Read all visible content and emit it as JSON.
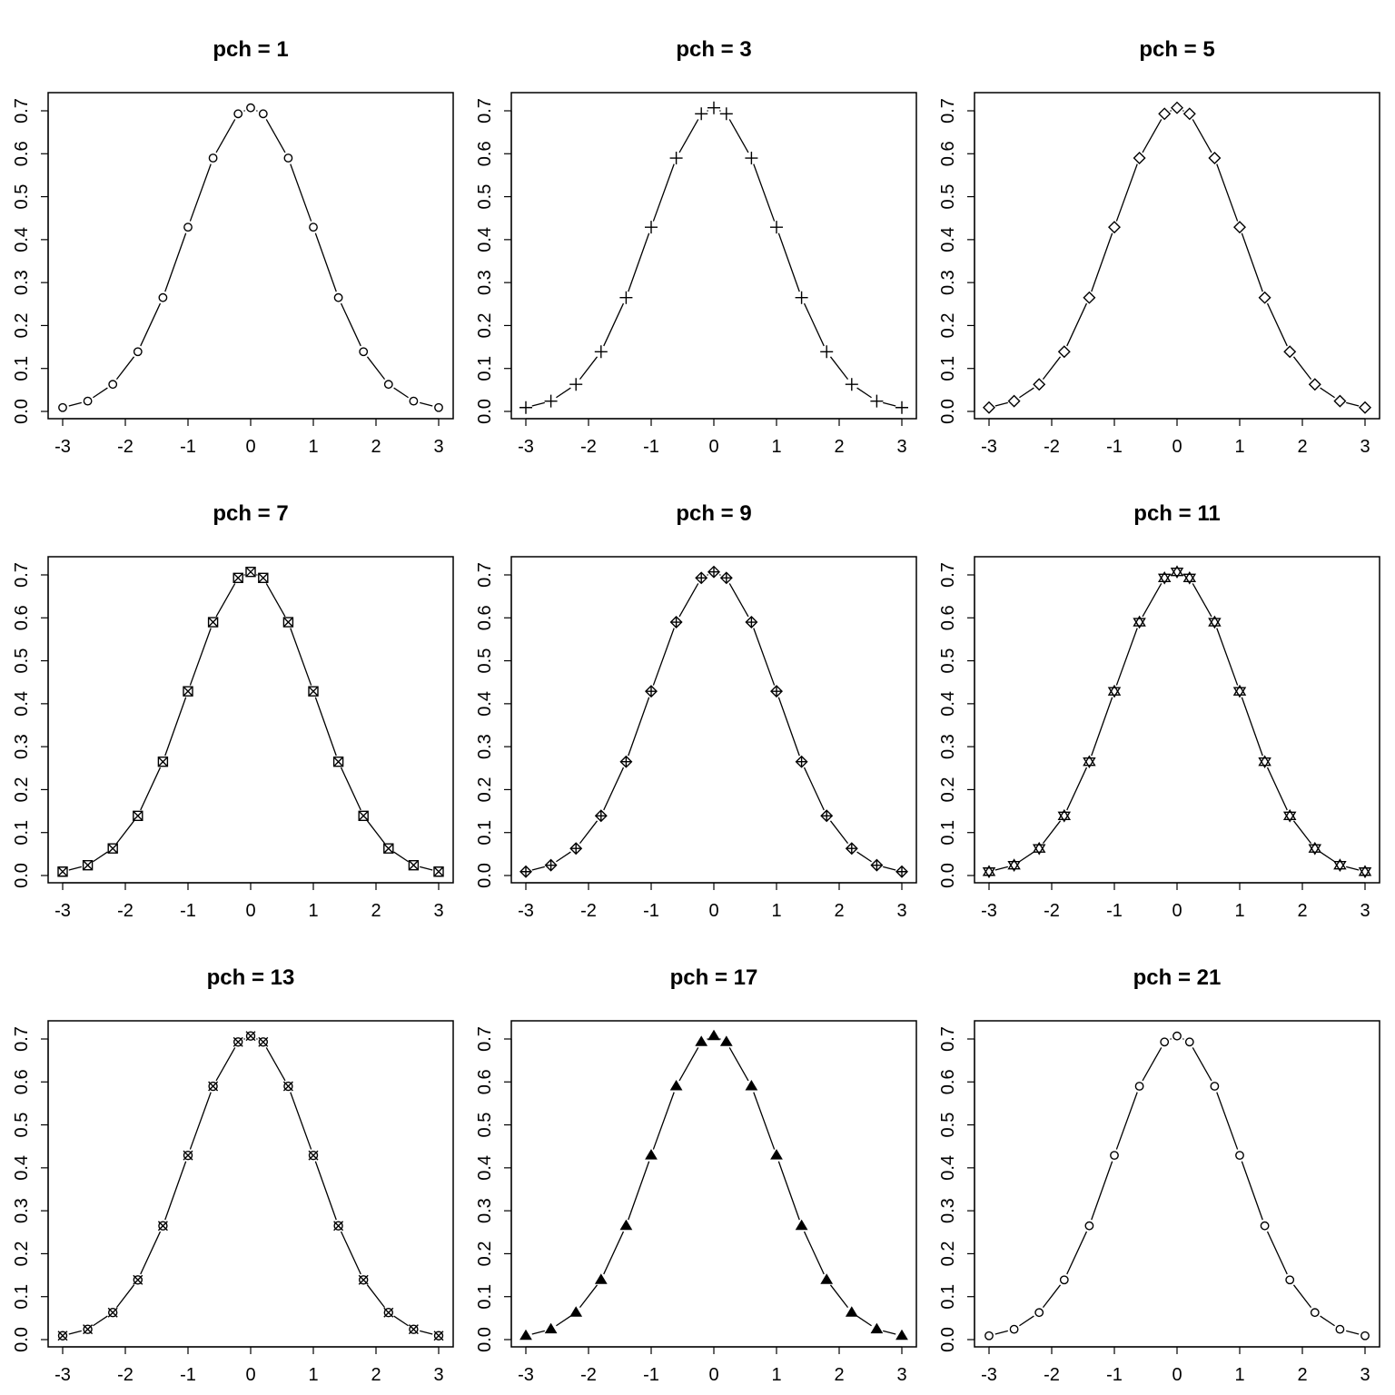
{
  "figure": {
    "background": "#ffffff",
    "foreground": "#000000"
  },
  "chart_data": [
    {
      "type": "line",
      "title": "pch = 1",
      "marker": "circle-open",
      "pch": 1,
      "x": [
        -3,
        -2.6,
        -2.2,
        -1.8,
        -1.4,
        -1,
        -0.6,
        -0.2,
        0,
        0.2,
        0.6,
        1,
        1.4,
        1.8,
        2.2,
        2.6,
        3
      ],
      "y": [
        0.009,
        0.024,
        0.063,
        0.139,
        0.265,
        0.429,
        0.59,
        0.693,
        0.707,
        0.693,
        0.59,
        0.429,
        0.265,
        0.139,
        0.063,
        0.024,
        0.009
      ],
      "xlim": [
        -3,
        3
      ],
      "ylim": [
        0,
        0.7
      ],
      "xticks": [
        "-3",
        "-2",
        "-1",
        "0",
        "1",
        "2",
        "3"
      ],
      "yticks": [
        "0.0",
        "0.1",
        "0.2",
        "0.3",
        "0.4",
        "0.5",
        "0.6",
        "0.7"
      ],
      "grid": false,
      "xlabel": "",
      "ylabel": ""
    },
    {
      "type": "line",
      "title": "pch = 3",
      "marker": "plus",
      "pch": 3,
      "x": [
        -3,
        -2.6,
        -2.2,
        -1.8,
        -1.4,
        -1,
        -0.6,
        -0.2,
        0,
        0.2,
        0.6,
        1,
        1.4,
        1.8,
        2.2,
        2.6,
        3
      ],
      "y": [
        0.009,
        0.024,
        0.063,
        0.139,
        0.265,
        0.429,
        0.59,
        0.693,
        0.707,
        0.693,
        0.59,
        0.429,
        0.265,
        0.139,
        0.063,
        0.024,
        0.009
      ],
      "xlim": [
        -3,
        3
      ],
      "ylim": [
        0,
        0.7
      ],
      "xticks": [
        "-3",
        "-2",
        "-1",
        "0",
        "1",
        "2",
        "3"
      ],
      "yticks": [
        "0.0",
        "0.1",
        "0.2",
        "0.3",
        "0.4",
        "0.5",
        "0.6",
        "0.7"
      ],
      "grid": false,
      "xlabel": "",
      "ylabel": ""
    },
    {
      "type": "line",
      "title": "pch = 5",
      "marker": "diamond-open",
      "pch": 5,
      "x": [
        -3,
        -2.6,
        -2.2,
        -1.8,
        -1.4,
        -1,
        -0.6,
        -0.2,
        0,
        0.2,
        0.6,
        1,
        1.4,
        1.8,
        2.2,
        2.6,
        3
      ],
      "y": [
        0.009,
        0.024,
        0.063,
        0.139,
        0.265,
        0.429,
        0.59,
        0.693,
        0.707,
        0.693,
        0.59,
        0.429,
        0.265,
        0.139,
        0.063,
        0.024,
        0.009
      ],
      "xlim": [
        -3,
        3
      ],
      "ylim": [
        0,
        0.7
      ],
      "xticks": [
        "-3",
        "-2",
        "-1",
        "0",
        "1",
        "2",
        "3"
      ],
      "yticks": [
        "0.0",
        "0.1",
        "0.2",
        "0.3",
        "0.4",
        "0.5",
        "0.6",
        "0.7"
      ],
      "grid": false,
      "xlabel": "",
      "ylabel": ""
    },
    {
      "type": "line",
      "title": "pch = 7",
      "marker": "square-x",
      "pch": 7,
      "x": [
        -3,
        -2.6,
        -2.2,
        -1.8,
        -1.4,
        -1,
        -0.6,
        -0.2,
        0,
        0.2,
        0.6,
        1,
        1.4,
        1.8,
        2.2,
        2.6,
        3
      ],
      "y": [
        0.009,
        0.024,
        0.063,
        0.139,
        0.265,
        0.429,
        0.59,
        0.693,
        0.707,
        0.693,
        0.59,
        0.429,
        0.265,
        0.139,
        0.063,
        0.024,
        0.009
      ],
      "xlim": [
        -3,
        3
      ],
      "ylim": [
        0,
        0.7
      ],
      "xticks": [
        "-3",
        "-2",
        "-1",
        "0",
        "1",
        "2",
        "3"
      ],
      "yticks": [
        "0.0",
        "0.1",
        "0.2",
        "0.3",
        "0.4",
        "0.5",
        "0.6",
        "0.7"
      ],
      "grid": false,
      "xlabel": "",
      "ylabel": ""
    },
    {
      "type": "line",
      "title": "pch = 9",
      "marker": "diamond-plus",
      "pch": 9,
      "x": [
        -3,
        -2.6,
        -2.2,
        -1.8,
        -1.4,
        -1,
        -0.6,
        -0.2,
        0,
        0.2,
        0.6,
        1,
        1.4,
        1.8,
        2.2,
        2.6,
        3
      ],
      "y": [
        0.009,
        0.024,
        0.063,
        0.139,
        0.265,
        0.429,
        0.59,
        0.693,
        0.707,
        0.693,
        0.59,
        0.429,
        0.265,
        0.139,
        0.063,
        0.024,
        0.009
      ],
      "xlim": [
        -3,
        3
      ],
      "ylim": [
        0,
        0.7
      ],
      "xticks": [
        "-3",
        "-2",
        "-1",
        "0",
        "1",
        "2",
        "3"
      ],
      "yticks": [
        "0.0",
        "0.1",
        "0.2",
        "0.3",
        "0.4",
        "0.5",
        "0.6",
        "0.7"
      ],
      "grid": false,
      "xlabel": "",
      "ylabel": ""
    },
    {
      "type": "line",
      "title": "pch = 11",
      "marker": "star-of-david",
      "pch": 11,
      "x": [
        -3,
        -2.6,
        -2.2,
        -1.8,
        -1.4,
        -1,
        -0.6,
        -0.2,
        0,
        0.2,
        0.6,
        1,
        1.4,
        1.8,
        2.2,
        2.6,
        3
      ],
      "y": [
        0.009,
        0.024,
        0.063,
        0.139,
        0.265,
        0.429,
        0.59,
        0.693,
        0.707,
        0.693,
        0.59,
        0.429,
        0.265,
        0.139,
        0.063,
        0.024,
        0.009
      ],
      "xlim": [
        -3,
        3
      ],
      "ylim": [
        0,
        0.7
      ],
      "xticks": [
        "-3",
        "-2",
        "-1",
        "0",
        "1",
        "2",
        "3"
      ],
      "yticks": [
        "0.0",
        "0.1",
        "0.2",
        "0.3",
        "0.4",
        "0.5",
        "0.6",
        "0.7"
      ],
      "grid": false,
      "xlabel": "",
      "ylabel": ""
    },
    {
      "type": "line",
      "title": "pch = 13",
      "marker": "circle-x",
      "pch": 13,
      "x": [
        -3,
        -2.6,
        -2.2,
        -1.8,
        -1.4,
        -1,
        -0.6,
        -0.2,
        0,
        0.2,
        0.6,
        1,
        1.4,
        1.8,
        2.2,
        2.6,
        3
      ],
      "y": [
        0.009,
        0.024,
        0.063,
        0.139,
        0.265,
        0.429,
        0.59,
        0.693,
        0.707,
        0.693,
        0.59,
        0.429,
        0.265,
        0.139,
        0.063,
        0.024,
        0.009
      ],
      "xlim": [
        -3,
        3
      ],
      "ylim": [
        0,
        0.7
      ],
      "xticks": [
        "-3",
        "-2",
        "-1",
        "0",
        "1",
        "2",
        "3"
      ],
      "yticks": [
        "0.0",
        "0.1",
        "0.2",
        "0.3",
        "0.4",
        "0.5",
        "0.6",
        "0.7"
      ],
      "grid": false,
      "xlabel": "",
      "ylabel": ""
    },
    {
      "type": "line",
      "title": "pch = 17",
      "marker": "triangle-filled",
      "pch": 17,
      "x": [
        -3,
        -2.6,
        -2.2,
        -1.8,
        -1.4,
        -1,
        -0.6,
        -0.2,
        0,
        0.2,
        0.6,
        1,
        1.4,
        1.8,
        2.2,
        2.6,
        3
      ],
      "y": [
        0.009,
        0.024,
        0.063,
        0.139,
        0.265,
        0.429,
        0.59,
        0.693,
        0.707,
        0.693,
        0.59,
        0.429,
        0.265,
        0.139,
        0.063,
        0.024,
        0.009
      ],
      "xlim": [
        -3,
        3
      ],
      "ylim": [
        0,
        0.7
      ],
      "xticks": [
        "-3",
        "-2",
        "-1",
        "0",
        "1",
        "2",
        "3"
      ],
      "yticks": [
        "0.0",
        "0.1",
        "0.2",
        "0.3",
        "0.4",
        "0.5",
        "0.6",
        "0.7"
      ],
      "grid": false,
      "xlabel": "",
      "ylabel": ""
    },
    {
      "type": "line",
      "title": "pch = 21",
      "marker": "circle-filled-bg",
      "pch": 21,
      "x": [
        -3,
        -2.6,
        -2.2,
        -1.8,
        -1.4,
        -1,
        -0.6,
        -0.2,
        0,
        0.2,
        0.6,
        1,
        1.4,
        1.8,
        2.2,
        2.6,
        3
      ],
      "y": [
        0.009,
        0.024,
        0.063,
        0.139,
        0.265,
        0.429,
        0.59,
        0.693,
        0.707,
        0.693,
        0.59,
        0.429,
        0.265,
        0.139,
        0.063,
        0.024,
        0.009
      ],
      "xlim": [
        -3,
        3
      ],
      "ylim": [
        0,
        0.7
      ],
      "xticks": [
        "-3",
        "-2",
        "-1",
        "0",
        "1",
        "2",
        "3"
      ],
      "yticks": [
        "0.0",
        "0.1",
        "0.2",
        "0.3",
        "0.4",
        "0.5",
        "0.6",
        "0.7"
      ],
      "grid": false,
      "xlabel": "",
      "ylabel": ""
    }
  ]
}
